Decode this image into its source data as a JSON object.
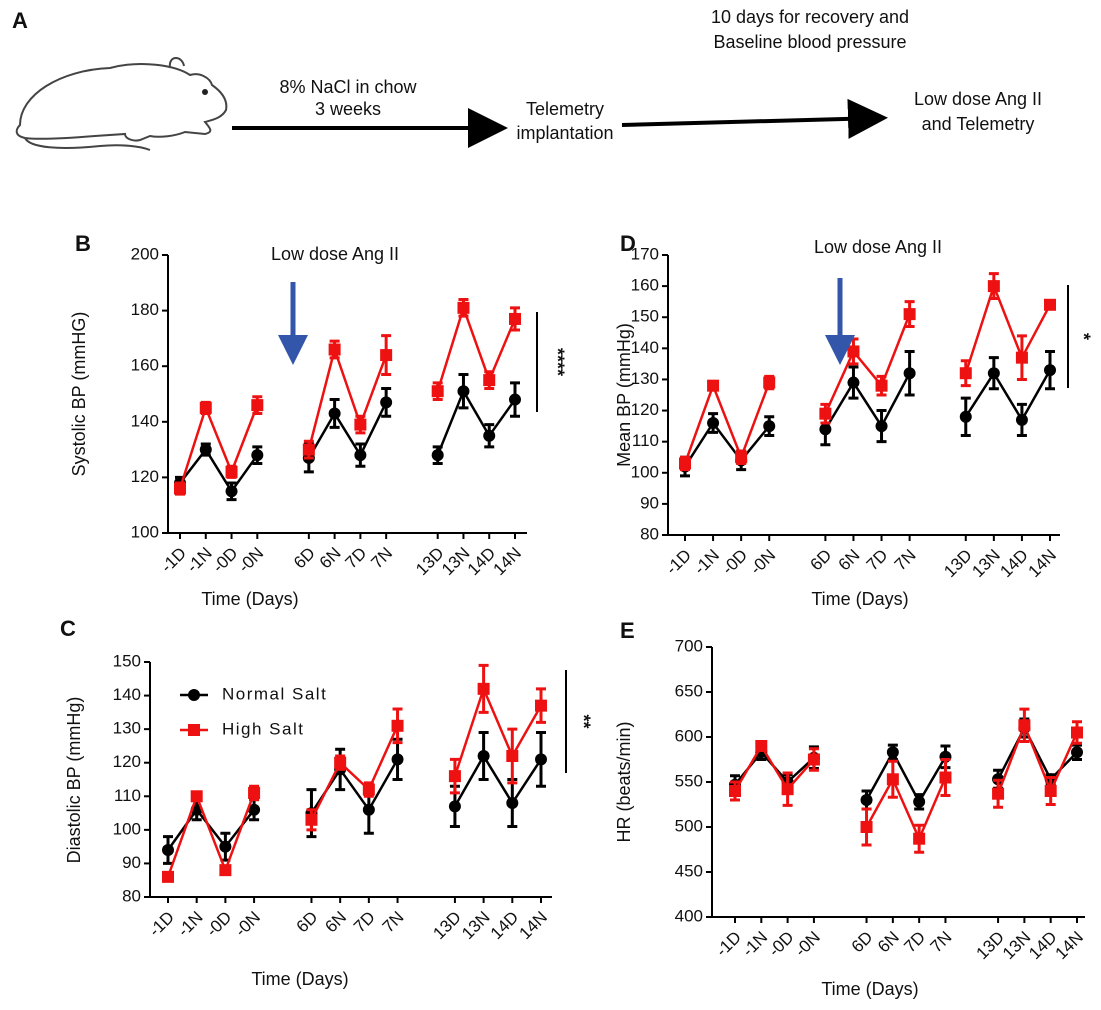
{
  "panel_a": {
    "label": "A",
    "step1_line1": "8% NaCl in chow",
    "step1_line2": "3 weeks",
    "step2_line1": "Telemetry",
    "step2_line2": "implantation",
    "step3_line1": "10 days for recovery and",
    "step3_line2": "Baseline blood pressure",
    "step4_line1": "Low dose Ang II",
    "step4_line2": "and Telemetry"
  },
  "chart_data": [
    {
      "type": "line",
      "panel": "B",
      "y_label": "Systolic BP (mmHG)",
      "x_label": "Time (Days)",
      "arrow_label": "Low dose Ang II",
      "significance": "****",
      "categories": [
        "-1D",
        "-1N",
        "-0D",
        "-0N",
        null,
        "6D",
        "6N",
        "7D",
        "7N",
        null,
        "13D",
        "13N",
        "14D",
        "14N"
      ],
      "ylim": [
        100,
        200
      ],
      "yticks": [
        100,
        120,
        140,
        160,
        180,
        200
      ],
      "series": [
        {
          "color": "#000000",
          "marker": "circle",
          "values": [
            118,
            130,
            115,
            128,
            null,
            127,
            143,
            128,
            147,
            null,
            128,
            151,
            135,
            148
          ],
          "errors": [
            2,
            2,
            3,
            3,
            null,
            5,
            5,
            4,
            5,
            null,
            3,
            6,
            4,
            6
          ]
        },
        {
          "color": "#ee1111",
          "marker": "square",
          "values": [
            116,
            145,
            122,
            146,
            null,
            130,
            166,
            139,
            164,
            null,
            151,
            181,
            155,
            177
          ],
          "errors": [
            2,
            2,
            2,
            3,
            null,
            3,
            3,
            3,
            7,
            null,
            3,
            3,
            3,
            4
          ]
        }
      ]
    },
    {
      "type": "line",
      "panel": "D",
      "y_label": "Mean BP (mmHg)",
      "x_label": "Time (Days)",
      "arrow_label": "Low dose Ang II",
      "significance": "*",
      "categories": [
        "-1D",
        "-1N",
        "-0D",
        "-0N",
        null,
        "6D",
        "6N",
        "7D",
        "7N",
        null,
        "13D",
        "13N",
        "14D",
        "14N"
      ],
      "ylim": [
        80,
        170
      ],
      "yticks": [
        80,
        90,
        100,
        110,
        120,
        130,
        140,
        150,
        160,
        170
      ],
      "series": [
        {
          "color": "#000000",
          "marker": "circle",
          "values": [
            102,
            116,
            104,
            115,
            null,
            114,
            129,
            115,
            132,
            null,
            118,
            132,
            117,
            133
          ],
          "errors": [
            3,
            3,
            3,
            3,
            null,
            5,
            5,
            5,
            7,
            null,
            6,
            5,
            5,
            6
          ]
        },
        {
          "color": "#ee1111",
          "marker": "square",
          "values": [
            103,
            128,
            105,
            129,
            null,
            119,
            139,
            128,
            151,
            null,
            132,
            160,
            137,
            154
          ],
          "errors": [
            2,
            1,
            2,
            2,
            null,
            3,
            4,
            3,
            4,
            null,
            4,
            4,
            7,
            1
          ]
        }
      ]
    },
    {
      "type": "line",
      "panel": "C",
      "y_label": "Diastolic BP (mmHg)",
      "x_label": "Time (Days)",
      "significance": "**",
      "legend": "upper left",
      "categories": [
        "-1D",
        "-1N",
        "-0D",
        "-0N",
        null,
        "6D",
        "6N",
        "7D",
        "7N",
        null,
        "13D",
        "13N",
        "14D",
        "14N"
      ],
      "ylim": [
        80,
        150
      ],
      "yticks": [
        80,
        90,
        100,
        110,
        120,
        130,
        140,
        150
      ],
      "series": [
        {
          "name": "Normal Salt",
          "color": "#000000",
          "marker": "circle",
          "values": [
            94,
            106,
            95,
            106,
            null,
            105,
            118,
            106,
            121,
            null,
            107,
            122,
            108,
            121
          ],
          "errors": [
            4,
            3,
            4,
            3,
            null,
            7,
            6,
            7,
            6,
            null,
            6,
            7,
            7,
            8
          ]
        },
        {
          "name": "High Salt",
          "color": "#ee1111",
          "marker": "square",
          "values": [
            86,
            110,
            88,
            111,
            null,
            103,
            120,
            112,
            131,
            null,
            116,
            142,
            122,
            137
          ],
          "errors": [
            1,
            1,
            1,
            2,
            null,
            3,
            2,
            2,
            5,
            null,
            5,
            7,
            8,
            5
          ]
        }
      ]
    },
    {
      "type": "line",
      "panel": "E",
      "y_label": "HR (beats/min)",
      "x_label": "Time (Days)",
      "categories": [
        "-1D",
        "-1N",
        "-0D",
        "-0N",
        null,
        "6D",
        "6N",
        "7D",
        "7N",
        null,
        "13D",
        "13N",
        "14D",
        "14N"
      ],
      "ylim": [
        400,
        700
      ],
      "yticks": [
        400,
        450,
        500,
        550,
        600,
        650,
        700
      ],
      "series": [
        {
          "color": "#000000",
          "marker": "circle",
          "values": [
            547,
            583,
            550,
            577,
            null,
            530,
            583,
            528,
            578,
            null,
            553,
            610,
            553,
            583
          ],
          "errors": [
            10,
            8,
            8,
            12,
            null,
            10,
            8,
            8,
            12,
            null,
            10,
            10,
            5,
            8
          ]
        },
        {
          "color": "#ee1111",
          "marker": "square",
          "values": [
            540,
            590,
            542,
            575,
            null,
            500,
            553,
            487,
            555,
            null,
            537,
            613,
            540,
            605
          ],
          "errors": [
            10,
            5,
            18,
            12,
            null,
            20,
            20,
            15,
            20,
            null,
            15,
            18,
            15,
            12
          ]
        }
      ]
    }
  ]
}
